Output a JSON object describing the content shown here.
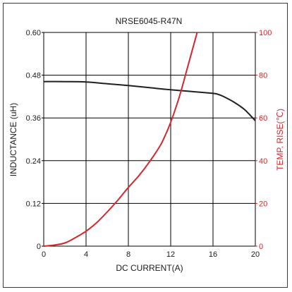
{
  "chart_data": {
    "type": "line",
    "title": "NRSE6045-R47N",
    "xlabel": "DC CURRENT(A)",
    "ylabel_left": "INDUCTANCE (uH)",
    "ylabel_right": "TEMP. RISE(℃)",
    "xlim": [
      0,
      20
    ],
    "ylim_left": [
      0,
      0.6
    ],
    "ylim_right": [
      0,
      100
    ],
    "x_ticks": [
      "0",
      "4",
      "8",
      "12",
      "16",
      "20"
    ],
    "y_left_ticks": [
      "0",
      "0.12",
      "0.24",
      "0.36",
      "0.48",
      "0.60"
    ],
    "y_right_ticks": [
      "0",
      "20",
      "40",
      "60",
      "80",
      "100"
    ],
    "grid": true,
    "colors": {
      "inductance": "#231f20",
      "temp": "#d4262b",
      "right_axis": "#d4262b",
      "grid": "#000000"
    },
    "series": [
      {
        "axis": "left",
        "x": [
          0,
          2,
          4,
          6,
          8,
          10,
          12,
          14,
          16,
          16.5,
          17,
          18,
          19,
          20
        ],
        "values": [
          0.462,
          0.462,
          0.461,
          0.456,
          0.451,
          0.445,
          0.439,
          0.434,
          0.429,
          0.426,
          0.42,
          0.404,
          0.383,
          0.352
        ]
      },
      {
        "axis": "right",
        "x": [
          0,
          1,
          2,
          3,
          4,
          5,
          6,
          7,
          8,
          9,
          10,
          11,
          11.5,
          12,
          12.5,
          13,
          13.5,
          14,
          14.5
        ],
        "values": [
          0,
          0.5,
          1.5,
          4,
          7,
          11,
          16,
          21.5,
          27.5,
          33,
          39.5,
          47,
          52,
          58,
          65,
          73,
          82,
          91,
          100
        ]
      }
    ]
  }
}
